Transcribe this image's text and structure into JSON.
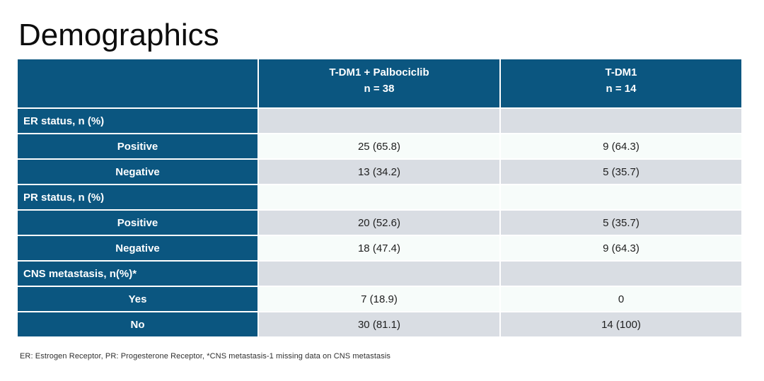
{
  "slide": {
    "title": "Demographics",
    "footnote": "ER: Estrogen Receptor, PR: Progesterone Receptor, *CNS metastasis-1 missing data on CNS metastasis"
  },
  "colors": {
    "header_blue": "#0b5680",
    "row_gray": "#d9dde3",
    "row_light": "#f7fcfa"
  },
  "table": {
    "columns": [
      {
        "name": "T-DM1 + Palbociclib",
        "n": "n = 38"
      },
      {
        "name": "T-DM1",
        "n": "n = 14"
      }
    ],
    "rows": [
      {
        "label": "ER status, n (%)",
        "type": "category",
        "values": [
          "",
          ""
        ]
      },
      {
        "label": "Positive",
        "type": "sub",
        "values": [
          "25 (65.8)",
          "9 (64.3)"
        ]
      },
      {
        "label": "Negative",
        "type": "sub",
        "values": [
          "13 (34.2)",
          "5 (35.7)"
        ]
      },
      {
        "label": "PR status, n (%)",
        "type": "category",
        "values": [
          "",
          ""
        ]
      },
      {
        "label": "Positive",
        "type": "sub",
        "values": [
          "20 (52.6)",
          "5 (35.7)"
        ]
      },
      {
        "label": "Negative",
        "type": "sub",
        "values": [
          "18 (47.4)",
          "9 (64.3)"
        ]
      },
      {
        "label": "CNS metastasis, n(%)*",
        "type": "category",
        "values": [
          "",
          ""
        ]
      },
      {
        "label": "Yes",
        "type": "sub",
        "values": [
          "7 (18.9)",
          "0"
        ]
      },
      {
        "label": "No",
        "type": "sub",
        "values": [
          "30 (81.1)",
          "14 (100)"
        ]
      }
    ]
  }
}
